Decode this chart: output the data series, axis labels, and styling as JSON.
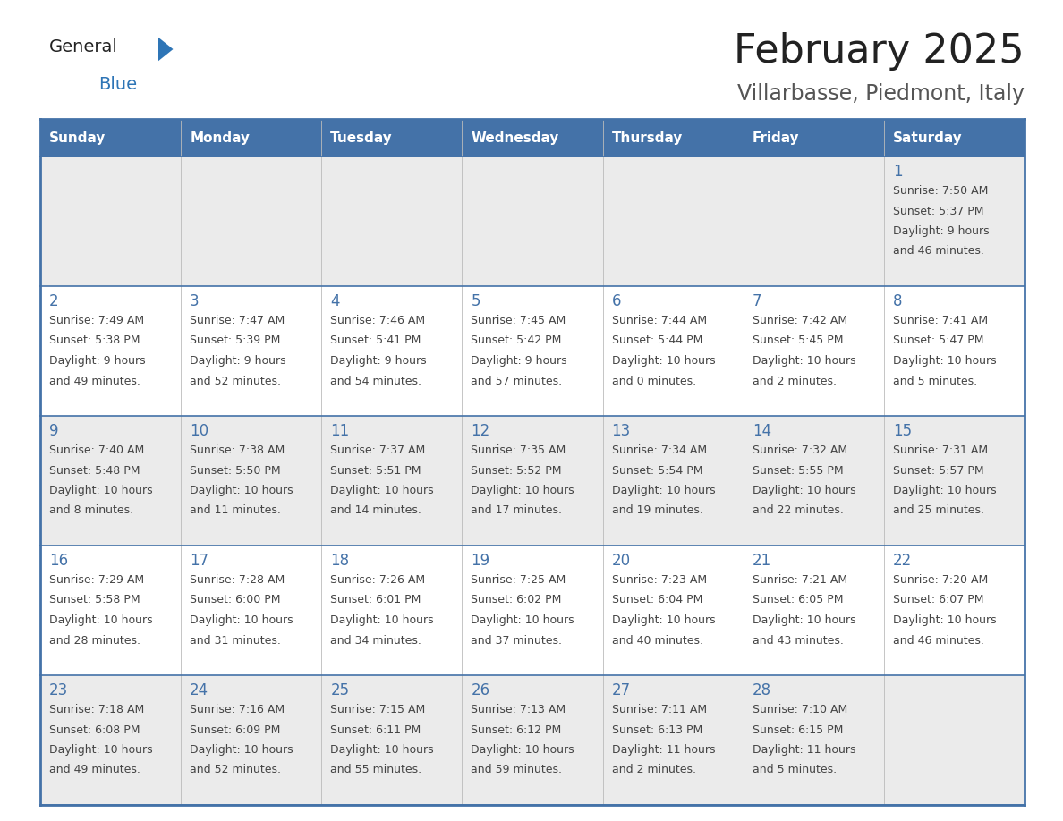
{
  "title": "February 2025",
  "subtitle": "Villarbasse, Piedmont, Italy",
  "days_of_week": [
    "Sunday",
    "Monday",
    "Tuesday",
    "Wednesday",
    "Thursday",
    "Friday",
    "Saturday"
  ],
  "header_bg": "#4472A8",
  "header_text": "#FFFFFF",
  "cell_bg_odd": "#EBEBEB",
  "cell_bg_even": "#FFFFFF",
  "border_color": "#4472A8",
  "text_color": "#444444",
  "day_number_color": "#4472A8",
  "logo_black": "#222222",
  "logo_blue": "#2E75B6",
  "title_color": "#222222",
  "subtitle_color": "#555555",
  "calendar_data": [
    [
      null,
      null,
      null,
      null,
      null,
      null,
      {
        "day": 1,
        "sunrise": "7:50 AM",
        "sunset": "5:37 PM",
        "daylight_line1": "Daylight: 9 hours",
        "daylight_line2": "and 46 minutes."
      }
    ],
    [
      {
        "day": 2,
        "sunrise": "7:49 AM",
        "sunset": "5:38 PM",
        "daylight_line1": "Daylight: 9 hours",
        "daylight_line2": "and 49 minutes."
      },
      {
        "day": 3,
        "sunrise": "7:47 AM",
        "sunset": "5:39 PM",
        "daylight_line1": "Daylight: 9 hours",
        "daylight_line2": "and 52 minutes."
      },
      {
        "day": 4,
        "sunrise": "7:46 AM",
        "sunset": "5:41 PM",
        "daylight_line1": "Daylight: 9 hours",
        "daylight_line2": "and 54 minutes."
      },
      {
        "day": 5,
        "sunrise": "7:45 AM",
        "sunset": "5:42 PM",
        "daylight_line1": "Daylight: 9 hours",
        "daylight_line2": "and 57 minutes."
      },
      {
        "day": 6,
        "sunrise": "7:44 AM",
        "sunset": "5:44 PM",
        "daylight_line1": "Daylight: 10 hours",
        "daylight_line2": "and 0 minutes."
      },
      {
        "day": 7,
        "sunrise": "7:42 AM",
        "sunset": "5:45 PM",
        "daylight_line1": "Daylight: 10 hours",
        "daylight_line2": "and 2 minutes."
      },
      {
        "day": 8,
        "sunrise": "7:41 AM",
        "sunset": "5:47 PM",
        "daylight_line1": "Daylight: 10 hours",
        "daylight_line2": "and 5 minutes."
      }
    ],
    [
      {
        "day": 9,
        "sunrise": "7:40 AM",
        "sunset": "5:48 PM",
        "daylight_line1": "Daylight: 10 hours",
        "daylight_line2": "and 8 minutes."
      },
      {
        "day": 10,
        "sunrise": "7:38 AM",
        "sunset": "5:50 PM",
        "daylight_line1": "Daylight: 10 hours",
        "daylight_line2": "and 11 minutes."
      },
      {
        "day": 11,
        "sunrise": "7:37 AM",
        "sunset": "5:51 PM",
        "daylight_line1": "Daylight: 10 hours",
        "daylight_line2": "and 14 minutes."
      },
      {
        "day": 12,
        "sunrise": "7:35 AM",
        "sunset": "5:52 PM",
        "daylight_line1": "Daylight: 10 hours",
        "daylight_line2": "and 17 minutes."
      },
      {
        "day": 13,
        "sunrise": "7:34 AM",
        "sunset": "5:54 PM",
        "daylight_line1": "Daylight: 10 hours",
        "daylight_line2": "and 19 minutes."
      },
      {
        "day": 14,
        "sunrise": "7:32 AM",
        "sunset": "5:55 PM",
        "daylight_line1": "Daylight: 10 hours",
        "daylight_line2": "and 22 minutes."
      },
      {
        "day": 15,
        "sunrise": "7:31 AM",
        "sunset": "5:57 PM",
        "daylight_line1": "Daylight: 10 hours",
        "daylight_line2": "and 25 minutes."
      }
    ],
    [
      {
        "day": 16,
        "sunrise": "7:29 AM",
        "sunset": "5:58 PM",
        "daylight_line1": "Daylight: 10 hours",
        "daylight_line2": "and 28 minutes."
      },
      {
        "day": 17,
        "sunrise": "7:28 AM",
        "sunset": "6:00 PM",
        "daylight_line1": "Daylight: 10 hours",
        "daylight_line2": "and 31 minutes."
      },
      {
        "day": 18,
        "sunrise": "7:26 AM",
        "sunset": "6:01 PM",
        "daylight_line1": "Daylight: 10 hours",
        "daylight_line2": "and 34 minutes."
      },
      {
        "day": 19,
        "sunrise": "7:25 AM",
        "sunset": "6:02 PM",
        "daylight_line1": "Daylight: 10 hours",
        "daylight_line2": "and 37 minutes."
      },
      {
        "day": 20,
        "sunrise": "7:23 AM",
        "sunset": "6:04 PM",
        "daylight_line1": "Daylight: 10 hours",
        "daylight_line2": "and 40 minutes."
      },
      {
        "day": 21,
        "sunrise": "7:21 AM",
        "sunset": "6:05 PM",
        "daylight_line1": "Daylight: 10 hours",
        "daylight_line2": "and 43 minutes."
      },
      {
        "day": 22,
        "sunrise": "7:20 AM",
        "sunset": "6:07 PM",
        "daylight_line1": "Daylight: 10 hours",
        "daylight_line2": "and 46 minutes."
      }
    ],
    [
      {
        "day": 23,
        "sunrise": "7:18 AM",
        "sunset": "6:08 PM",
        "daylight_line1": "Daylight: 10 hours",
        "daylight_line2": "and 49 minutes."
      },
      {
        "day": 24,
        "sunrise": "7:16 AM",
        "sunset": "6:09 PM",
        "daylight_line1": "Daylight: 10 hours",
        "daylight_line2": "and 52 minutes."
      },
      {
        "day": 25,
        "sunrise": "7:15 AM",
        "sunset": "6:11 PM",
        "daylight_line1": "Daylight: 10 hours",
        "daylight_line2": "and 55 minutes."
      },
      {
        "day": 26,
        "sunrise": "7:13 AM",
        "sunset": "6:12 PM",
        "daylight_line1": "Daylight: 10 hours",
        "daylight_line2": "and 59 minutes."
      },
      {
        "day": 27,
        "sunrise": "7:11 AM",
        "sunset": "6:13 PM",
        "daylight_line1": "Daylight: 11 hours",
        "daylight_line2": "and 2 minutes."
      },
      {
        "day": 28,
        "sunrise": "7:10 AM",
        "sunset": "6:15 PM",
        "daylight_line1": "Daylight: 11 hours",
        "daylight_line2": "and 5 minutes."
      },
      null
    ]
  ]
}
